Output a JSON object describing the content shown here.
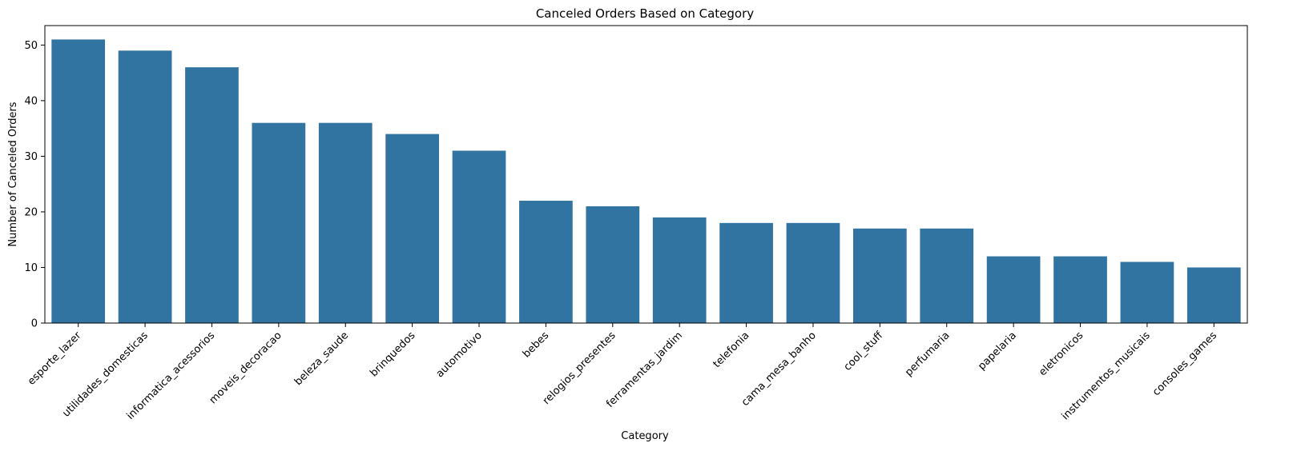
{
  "chart_data": {
    "type": "bar",
    "title": "Canceled Orders Based on Category",
    "xlabel": "Category",
    "ylabel": "Number of Canceled Orders",
    "ylim": [
      0,
      53.5
    ],
    "yticks": [
      0,
      10,
      20,
      30,
      40,
      50
    ],
    "grid": false,
    "bar_color": "#3274a1",
    "categories": [
      "esporte_lazer",
      "utilidades_domesticas",
      "informatica_acessorios",
      "moveis_decoracao",
      "beleza_saude",
      "brinquedos",
      "automotivo",
      "bebes",
      "relogios_presentes",
      "ferramentas_jardim",
      "telefonia",
      "cama_mesa_banho",
      "cool_stuff",
      "perfumaria",
      "papelaria",
      "eletronicos",
      "instrumentos_musicais",
      "consoles_games"
    ],
    "values": [
      51,
      49,
      46,
      36,
      36,
      34,
      31,
      22,
      21,
      19,
      18,
      18,
      17,
      17,
      12,
      12,
      11,
      10
    ]
  }
}
